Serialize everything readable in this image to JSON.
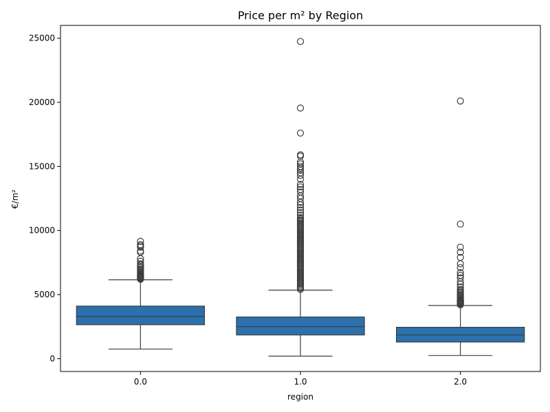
{
  "chart_data": {
    "type": "box",
    "title": "Price per m² by Region",
    "xlabel": "region",
    "ylabel": "€/m²",
    "categories": [
      "0.0",
      "1.0",
      "2.0"
    ],
    "ylim": [
      -1000,
      26000
    ],
    "yticks": [
      0,
      5000,
      10000,
      15000,
      20000,
      25000
    ],
    "grid": false,
    "box_color": "#2c70ad",
    "line_color": "#3d3d3d",
    "boxes": [
      {
        "category": "0.0",
        "whisker_low": 750,
        "q1": 2650,
        "median": 3300,
        "q3": 4100,
        "whisker_high": 6150,
        "outliers": [
          6200,
          6250,
          6300,
          6350,
          6400,
          6450,
          6500,
          6550,
          6600,
          6700,
          6800,
          6900,
          7000,
          7100,
          7200,
          7300,
          7400,
          7600,
          7800,
          8300,
          8400,
          8700,
          8800,
          8900,
          9150
        ]
      },
      {
        "category": "1.0",
        "whisker_low": 200,
        "q1": 1850,
        "median": 2500,
        "q3": 3250,
        "whisker_high": 5350,
        "outliers": [
          5400,
          5500,
          5600,
          5700,
          5800,
          5900,
          6000,
          6100,
          6200,
          6300,
          6400,
          6500,
          6600,
          6700,
          6800,
          6900,
          7000,
          7100,
          7200,
          7300,
          7400,
          7500,
          7600,
          7700,
          7800,
          7900,
          8000,
          8100,
          8200,
          8300,
          8400,
          8500,
          8600,
          8700,
          8800,
          8900,
          9000,
          9100,
          9200,
          9300,
          9400,
          9500,
          9600,
          9700,
          9800,
          9900,
          10000,
          10100,
          10200,
          10300,
          10400,
          10500,
          10600,
          10700,
          10800,
          10900,
          11000,
          11200,
          11400,
          11600,
          11800,
          12000,
          12200,
          12500,
          12700,
          13000,
          13200,
          13400,
          13600,
          14000,
          14300,
          14500,
          14700,
          14850,
          15000,
          15200,
          15350,
          15800,
          15900,
          17600,
          19550,
          24750
        ]
      },
      {
        "category": "2.0",
        "whisker_low": 250,
        "q1": 1300,
        "median": 1850,
        "q3": 2450,
        "whisker_high": 4150,
        "outliers": [
          4200,
          4250,
          4300,
          4350,
          4400,
          4450,
          4500,
          4550,
          4600,
          4700,
          4800,
          4900,
          5000,
          5100,
          5200,
          5300,
          5400,
          5600,
          5800,
          6000,
          6300,
          6500,
          6700,
          7100,
          7400,
          7900,
          8300,
          8700,
          10500,
          20100
        ]
      }
    ]
  }
}
